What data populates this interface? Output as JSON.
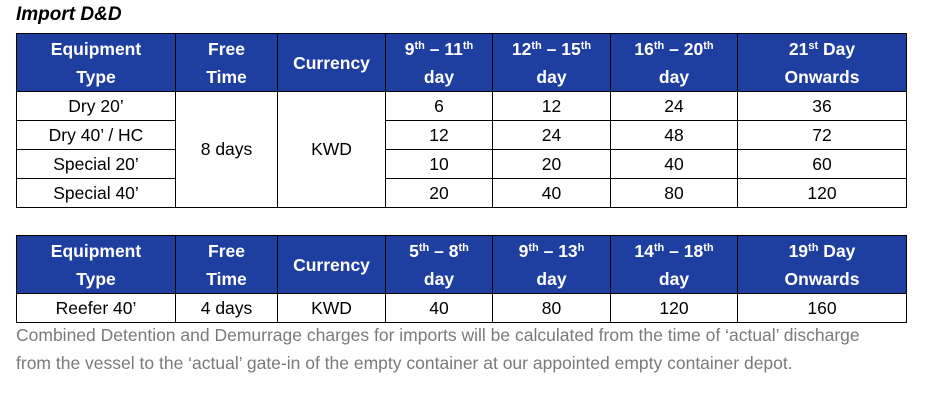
{
  "title": "Import D&D",
  "table1": {
    "headers": {
      "equipment_type": [
        "Equipment",
        "Type"
      ],
      "free_time": [
        "Free",
        "Time"
      ],
      "currency": "Currency",
      "p1": {
        "a": "9",
        "a_sup": "th",
        "sep": " – ",
        "b": "11",
        "b_sup": "th",
        "line2": "day"
      },
      "p2": {
        "a": "12",
        "a_sup": "th",
        "sep": " – ",
        "b": "15",
        "b_sup": "th",
        "line2": "day"
      },
      "p3": {
        "a": "16",
        "a_sup": "th",
        "sep": " – ",
        "b": "20",
        "b_sup": "th",
        "line2": "day"
      },
      "p4": {
        "a": "21",
        "a_sup": "st",
        "rest": " Day",
        "line2": "Onwards"
      }
    },
    "free_time_value": "8 days",
    "currency_value": "KWD",
    "rows": [
      {
        "type": "Dry 20’",
        "v": [
          "6",
          "12",
          "24",
          "36"
        ]
      },
      {
        "type": "Dry 40’ / HC",
        "v": [
          "12",
          "24",
          "48",
          "72"
        ]
      },
      {
        "type": "Special 20’",
        "v": [
          "10",
          "20",
          "40",
          "60"
        ]
      },
      {
        "type": "Special 40’",
        "v": [
          "20",
          "40",
          "80",
          "120"
        ]
      }
    ]
  },
  "table2": {
    "headers": {
      "equipment_type": [
        "Equipment",
        "Type"
      ],
      "free_time": [
        "Free",
        "Time"
      ],
      "currency": "Currency",
      "p1": {
        "a": "5",
        "a_sup": "th",
        "sep": " – ",
        "b": "8",
        "b_sup": "th",
        "line2": "day"
      },
      "p2": {
        "a": "9",
        "a_sup": "th",
        "sep": " – ",
        "b": "13",
        "b_sup": "h",
        "line2": "day"
      },
      "p3": {
        "a": "14",
        "a_sup": "th",
        "sep": " – ",
        "b": "18",
        "b_sup": "th",
        "line2": "day"
      },
      "p4": {
        "a": "19",
        "a_sup": "th",
        "rest": " Day",
        "line2": "Onwards"
      }
    },
    "rows": [
      {
        "type": "Reefer 40’",
        "free_time": "4 days",
        "currency": "KWD",
        "v": [
          "40",
          "80",
          "120",
          "160"
        ]
      }
    ]
  },
  "note": "Combined Detention and Demurrage charges for imports will be calculated from the time of ‘actual’ discharge from the vessel to the ‘actual’ gate-in of the empty container at our appointed empty container depot."
}
